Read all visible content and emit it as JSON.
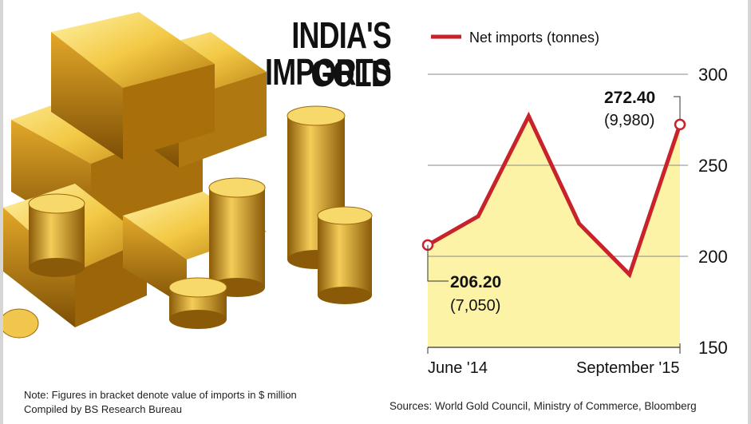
{
  "header": {
    "title_line1": "INDIA'S GOLD",
    "title_line2": "IMPORTS"
  },
  "footer": {
    "note": "Note: Figures in bracket denote value of imports in $ million",
    "compiled_by": "Compiled by BS Research Bureau",
    "sources": "Sources: World Gold Council, Ministry of Commerce, Bloomberg"
  },
  "colors": {
    "line": "#c8232b",
    "area": "#fdf3a6",
    "gold": "#d9a521",
    "grid": "#8a8a8a"
  },
  "chart_data": {
    "type": "line",
    "series": [
      {
        "name": "Net imports (tonnes)",
        "x": [
          0,
          1,
          2,
          3,
          4,
          5
        ],
        "values": [
          206.2,
          222,
          277,
          218,
          190,
          272.4
        ]
      }
    ],
    "x_labels": [
      "June '14",
      "September '15"
    ],
    "y_ticks": [
      300,
      250,
      200,
      150
    ],
    "ylim": [
      150,
      300
    ],
    "grid": true,
    "legend": "top",
    "annotations": [
      {
        "point": 0,
        "value": "206.20",
        "sub": "(7,050)"
      },
      {
        "point": 5,
        "value": "272.40",
        "sub": "(9,980)"
      }
    ]
  }
}
